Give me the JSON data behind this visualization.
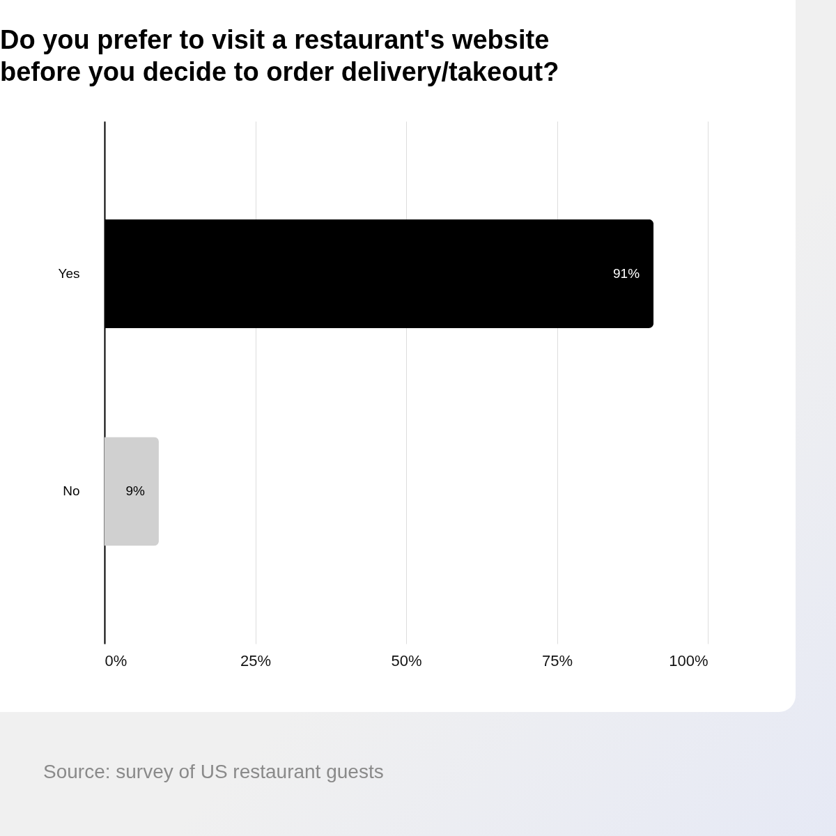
{
  "chart_data": {
    "type": "bar",
    "orientation": "horizontal",
    "title": "Do you prefer to visit a restaurant's website before you decide to order delivery/takeout?",
    "categories": [
      "Yes",
      "No"
    ],
    "values": [
      91,
      9
    ],
    "colors": [
      "#000000",
      "#d0d0d0"
    ],
    "value_labels": [
      "91%",
      "9%"
    ],
    "xlim": [
      0,
      100
    ],
    "xticks": [
      {
        "value": 0,
        "label": "0%"
      },
      {
        "value": 25,
        "label": "25%"
      },
      {
        "value": 50,
        "label": "50%"
      },
      {
        "value": 75,
        "label": "75%"
      },
      {
        "value": 100,
        "label": "100%"
      }
    ],
    "grid": "x",
    "annotations": [
      "Source: survey of US restaurant guests"
    ]
  }
}
